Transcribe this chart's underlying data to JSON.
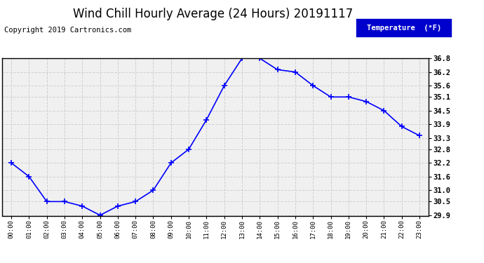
{
  "title": "Wind Chill Hourly Average (24 Hours) 20191117",
  "copyright": "Copyright 2019 Cartronics.com",
  "legend_label": "Temperature  (°F)",
  "hours": [
    "00:00",
    "01:00",
    "02:00",
    "03:00",
    "04:00",
    "05:00",
    "06:00",
    "07:00",
    "08:00",
    "09:00",
    "10:00",
    "11:00",
    "12:00",
    "13:00",
    "14:00",
    "15:00",
    "16:00",
    "17:00",
    "18:00",
    "19:00",
    "20:00",
    "21:00",
    "22:00",
    "23:00"
  ],
  "values": [
    32.2,
    31.6,
    30.5,
    30.5,
    30.3,
    29.9,
    30.3,
    30.5,
    31.0,
    32.2,
    32.8,
    34.1,
    35.6,
    36.8,
    36.8,
    36.3,
    36.2,
    35.6,
    35.1,
    35.1,
    34.9,
    34.5,
    33.8,
    33.4
  ],
  "ylim_min": 29.9,
  "ylim_max": 36.8,
  "yticks": [
    29.9,
    30.5,
    31.0,
    31.6,
    32.2,
    32.8,
    33.3,
    33.9,
    34.5,
    35.1,
    35.6,
    36.2,
    36.8
  ],
  "line_color": "blue",
  "marker": "+",
  "marker_color": "blue",
  "background_color": "#f0f0f0",
  "grid_color": "#cccccc",
  "title_fontsize": 12,
  "copyright_fontsize": 7.5,
  "legend_bg": "#0000cc",
  "legend_text_color": "white",
  "fig_bg": "white",
  "border_color": "black"
}
